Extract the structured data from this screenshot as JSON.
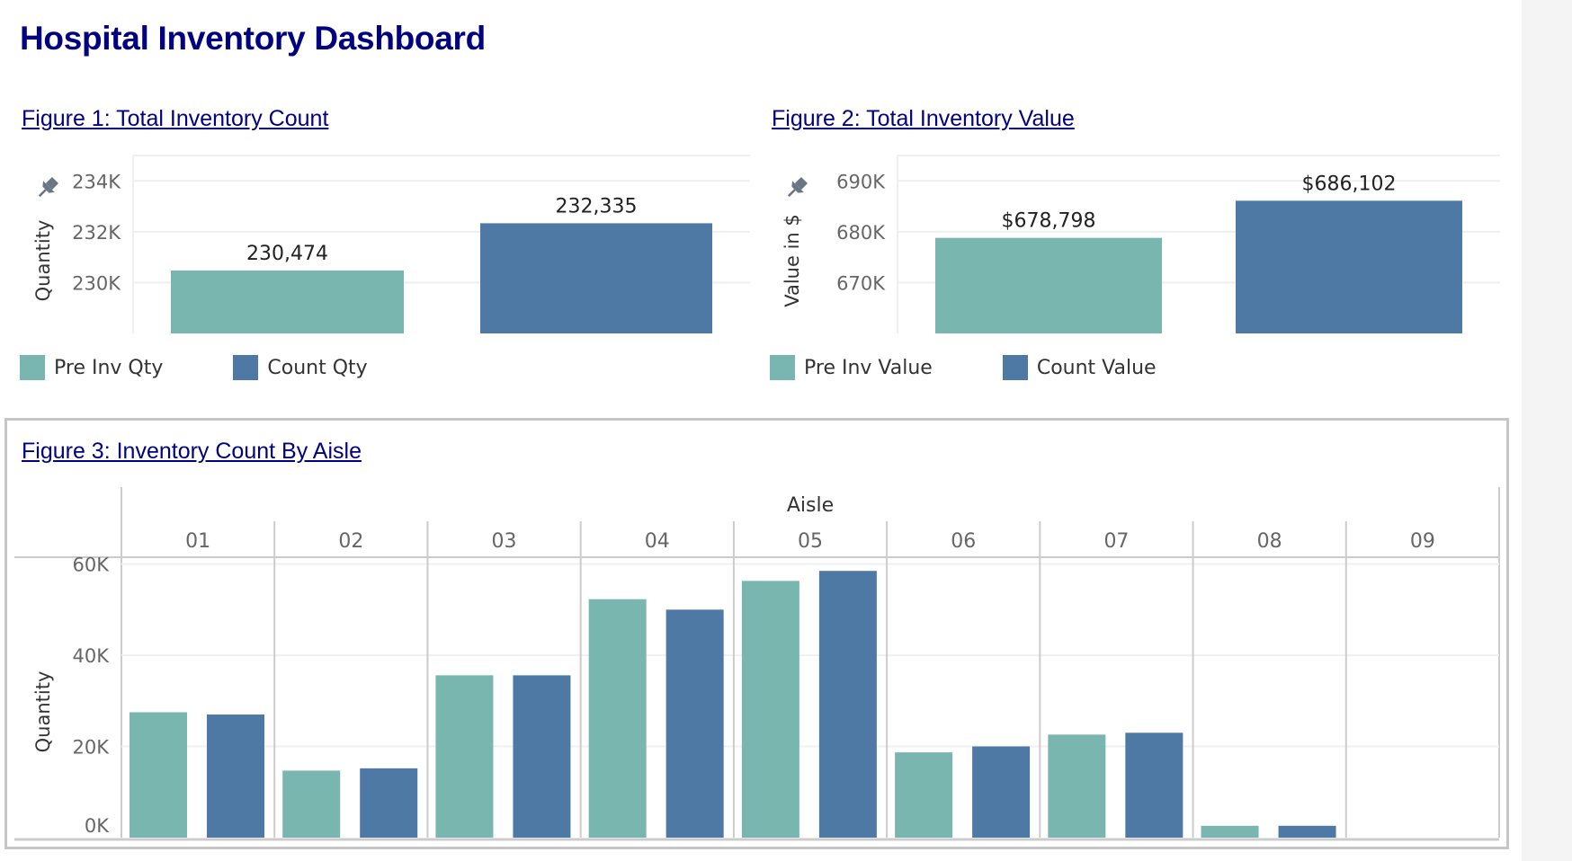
{
  "dashboard": {
    "title": "Hospital Inventory Dashboard"
  },
  "colors": {
    "pre": "#79b6b0",
    "count": "#4e79a5",
    "title": "#000080",
    "gutter": "#f4f4f4"
  },
  "icons": {
    "pin": "pushpin-icon"
  },
  "chart_data": [
    {
      "id": "fig1",
      "type": "bar",
      "title": "Figure 1: Total Inventory Count",
      "ylabel": "Quantity",
      "xlabel": "",
      "categories": [
        "Pre Inv Qty",
        "Count Qty"
      ],
      "values": [
        230474,
        232335
      ],
      "data_labels": [
        "230,474",
        "232,335"
      ],
      "yticks": [
        230000,
        232000,
        234000
      ],
      "ytick_labels": [
        "230K",
        "232K",
        "234K"
      ],
      "ylim": [
        228000,
        235000
      ],
      "grid": true,
      "legend": {
        "placement": "bottom-left",
        "entries": [
          {
            "label": "Pre Inv Qty",
            "color": "#79b6b0"
          },
          {
            "label": "Count Qty",
            "color": "#4e79a5"
          }
        ]
      }
    },
    {
      "id": "fig2",
      "type": "bar",
      "title": "Figure 2: Total Inventory Value",
      "ylabel": "Value in $",
      "xlabel": "",
      "categories": [
        "Pre Inv Value",
        "Count Value"
      ],
      "values": [
        678798,
        686102
      ],
      "data_labels": [
        "$678,798",
        "$686,102"
      ],
      "yticks": [
        670000,
        680000,
        690000
      ],
      "ytick_labels": [
        "670K",
        "680K",
        "690K"
      ],
      "ylim": [
        660000,
        695000
      ],
      "grid": true,
      "legend": {
        "placement": "bottom-left",
        "entries": [
          {
            "label": "Pre Inv Value",
            "color": "#79b6b0"
          },
          {
            "label": "Count Value",
            "color": "#4e79a5"
          }
        ]
      }
    },
    {
      "id": "fig3",
      "type": "bar",
      "title": "Figure 3: Inventory Count By Aisle",
      "ylabel": "Quantity",
      "xlabel": "Aisle",
      "categories": [
        "01",
        "02",
        "03",
        "04",
        "05",
        "06",
        "07",
        "08",
        "09"
      ],
      "series": [
        {
          "name": "Pre Inv Qty",
          "color": "#79b6b0",
          "values": [
            27500,
            14700,
            35600,
            52300,
            56300,
            18700,
            22600,
            2600,
            0
          ]
        },
        {
          "name": "Count Qty",
          "color": "#4e79a5",
          "values": [
            27000,
            15200,
            35600,
            50000,
            58500,
            20000,
            23000,
            2600,
            0
          ]
        }
      ],
      "yticks": [
        0,
        20000,
        40000,
        60000
      ],
      "ytick_labels": [
        "0K",
        "20K",
        "40K",
        "60K"
      ],
      "ylim": [
        0,
        61500
      ],
      "grid": true
    }
  ]
}
